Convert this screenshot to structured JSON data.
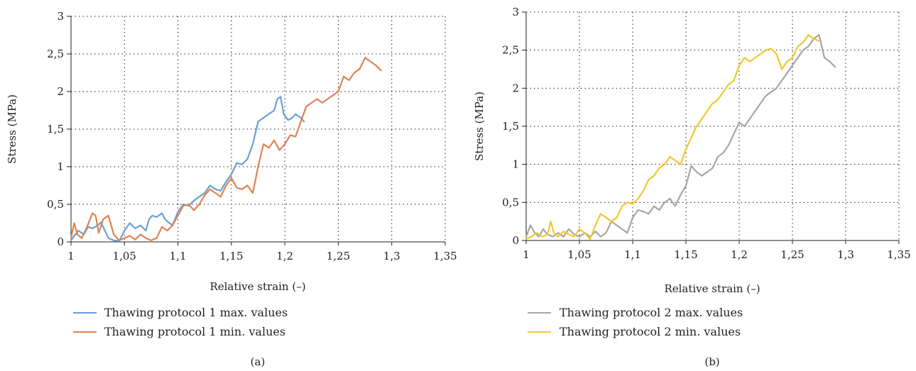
{
  "chart_data": [
    {
      "type": "line",
      "panel_label": "(a)",
      "xlabel": "Relative strain (–)",
      "ylabel": "Stress (MPa)",
      "xlim": [
        1,
        1.35
      ],
      "ylim": [
        0,
        3
      ],
      "xticks": [
        1,
        1.05,
        1.1,
        1.15,
        1.2,
        1.25,
        1.3,
        1.35
      ],
      "xtick_labels": [
        "1",
        "1,05",
        "1,1",
        "1,15",
        "1,2",
        "1,25",
        "1,3",
        "1,35"
      ],
      "yticks": [
        0,
        0.5,
        1,
        1.5,
        2,
        2.5,
        3
      ],
      "ytick_labels": [
        "0",
        "0,5",
        "1",
        "1,5",
        "2",
        "2,5",
        "3"
      ],
      "grid": true,
      "legend_position": "bottom-left",
      "series": [
        {
          "name": "Thawing protocol 1 max. values",
          "color": "#6a9fd3",
          "x": [
            1.0,
            1.003,
            1.007,
            1.012,
            1.016,
            1.02,
            1.025,
            1.028,
            1.032,
            1.035,
            1.04,
            1.045,
            1.05,
            1.055,
            1.06,
            1.065,
            1.07,
            1.073,
            1.076,
            1.08,
            1.085,
            1.088,
            1.092,
            1.095,
            1.1,
            1.105,
            1.11,
            1.115,
            1.12,
            1.125,
            1.13,
            1.135,
            1.14,
            1.145,
            1.15,
            1.155,
            1.16,
            1.165,
            1.17,
            1.175,
            1.18,
            1.185,
            1.19,
            1.193,
            1.196,
            1.199,
            1.203,
            1.207,
            1.21,
            1.215,
            1.218
          ],
          "y": [
            0.02,
            0.08,
            0.15,
            0.1,
            0.2,
            0.18,
            0.22,
            0.26,
            0.14,
            0.05,
            0.02,
            0.01,
            0.15,
            0.25,
            0.18,
            0.22,
            0.15,
            0.3,
            0.35,
            0.33,
            0.38,
            0.3,
            0.25,
            0.22,
            0.4,
            0.5,
            0.48,
            0.55,
            0.6,
            0.65,
            0.75,
            0.7,
            0.68,
            0.8,
            0.9,
            1.05,
            1.03,
            1.1,
            1.3,
            1.6,
            1.65,
            1.7,
            1.75,
            1.9,
            1.93,
            1.7,
            1.62,
            1.65,
            1.7,
            1.65,
            1.6
          ]
        },
        {
          "name": "Thawing protocol 1 min. values",
          "color": "#dd8452",
          "x": [
            1.0,
            1.003,
            1.006,
            1.01,
            1.015,
            1.02,
            1.023,
            1.026,
            1.03,
            1.035,
            1.04,
            1.045,
            1.05,
            1.055,
            1.06,
            1.065,
            1.07,
            1.075,
            1.08,
            1.085,
            1.09,
            1.095,
            1.1,
            1.105,
            1.11,
            1.115,
            1.12,
            1.125,
            1.13,
            1.135,
            1.14,
            1.145,
            1.15,
            1.155,
            1.16,
            1.165,
            1.17,
            1.175,
            1.18,
            1.185,
            1.19,
            1.195,
            1.2,
            1.205,
            1.21,
            1.215,
            1.22,
            1.225,
            1.23,
            1.235,
            1.24,
            1.245,
            1.25,
            1.255,
            1.26,
            1.265,
            1.27,
            1.275,
            1.28,
            1.285,
            1.29
          ],
          "y": [
            0.05,
            0.25,
            0.1,
            0.05,
            0.2,
            0.38,
            0.35,
            0.12,
            0.3,
            0.35,
            0.1,
            0.02,
            0.05,
            0.08,
            0.03,
            0.1,
            0.05,
            0.02,
            0.05,
            0.2,
            0.15,
            0.22,
            0.35,
            0.48,
            0.5,
            0.42,
            0.5,
            0.62,
            0.7,
            0.65,
            0.6,
            0.75,
            0.85,
            0.72,
            0.7,
            0.75,
            0.65,
            1.0,
            1.3,
            1.25,
            1.35,
            1.22,
            1.3,
            1.42,
            1.4,
            1.6,
            1.8,
            1.85,
            1.9,
            1.85,
            1.9,
            1.95,
            2.0,
            2.2,
            2.15,
            2.25,
            2.3,
            2.45,
            2.4,
            2.35,
            2.28
          ]
        }
      ]
    },
    {
      "type": "line",
      "panel_label": "(b)",
      "xlabel": "Relative strain (–)",
      "ylabel": "Stress (MPa)",
      "xlim": [
        1,
        1.35
      ],
      "ylim": [
        0,
        3
      ],
      "xticks": [
        1,
        1.05,
        1.1,
        1.15,
        1.2,
        1.25,
        1.3,
        1.35
      ],
      "xtick_labels": [
        "1",
        "1,05",
        "1,1",
        "1,15",
        "1,2",
        "1,25",
        "1,3",
        "1,35"
      ],
      "yticks": [
        0,
        0.5,
        1,
        1.5,
        2,
        2.5,
        3
      ],
      "ytick_labels": [
        "0",
        "0,5",
        "1",
        "1,5",
        "2",
        "2,5",
        "3"
      ],
      "grid": true,
      "legend_position": "bottom-left",
      "series": [
        {
          "name": "Thawing protocol 2 max. values",
          "color": "#a6a6a6",
          "x": [
            1.0,
            1.004,
            1.008,
            1.012,
            1.016,
            1.02,
            1.025,
            1.03,
            1.035,
            1.04,
            1.045,
            1.05,
            1.055,
            1.06,
            1.065,
            1.07,
            1.075,
            1.08,
            1.085,
            1.09,
            1.095,
            1.1,
            1.105,
            1.11,
            1.115,
            1.12,
            1.125,
            1.13,
            1.135,
            1.14,
            1.145,
            1.15,
            1.155,
            1.16,
            1.165,
            1.17,
            1.175,
            1.18,
            1.185,
            1.19,
            1.195,
            1.2,
            1.205,
            1.21,
            1.215,
            1.22,
            1.225,
            1.23,
            1.235,
            1.24,
            1.245,
            1.25,
            1.255,
            1.26,
            1.265,
            1.27,
            1.275,
            1.28,
            1.285,
            1.29
          ],
          "y": [
            0.05,
            0.2,
            0.1,
            0.05,
            0.15,
            0.08,
            0.05,
            0.1,
            0.05,
            0.15,
            0.08,
            0.05,
            0.1,
            0.05,
            0.12,
            0.05,
            0.1,
            0.25,
            0.2,
            0.15,
            0.1,
            0.3,
            0.4,
            0.38,
            0.35,
            0.45,
            0.4,
            0.5,
            0.55,
            0.45,
            0.6,
            0.72,
            0.98,
            0.9,
            0.85,
            0.9,
            0.95,
            1.1,
            1.15,
            1.25,
            1.4,
            1.55,
            1.5,
            1.6,
            1.7,
            1.8,
            1.9,
            1.95,
            2.0,
            2.1,
            2.2,
            2.3,
            2.4,
            2.5,
            2.55,
            2.65,
            2.7,
            2.4,
            2.35,
            2.28
          ]
        },
        {
          "name": "Thawing protocol 2 min. values",
          "color": "#f0c832",
          "x": [
            1.0,
            1.005,
            1.01,
            1.015,
            1.02,
            1.023,
            1.026,
            1.03,
            1.035,
            1.04,
            1.045,
            1.05,
            1.055,
            1.06,
            1.065,
            1.07,
            1.075,
            1.08,
            1.085,
            1.09,
            1.095,
            1.1,
            1.105,
            1.11,
            1.115,
            1.12,
            1.125,
            1.13,
            1.135,
            1.14,
            1.145,
            1.15,
            1.155,
            1.16,
            1.165,
            1.17,
            1.175,
            1.18,
            1.185,
            1.19,
            1.195,
            1.2,
            1.205,
            1.21,
            1.215,
            1.22,
            1.225,
            1.23,
            1.235,
            1.24,
            1.245,
            1.25,
            1.255,
            1.26,
            1.265,
            1.27,
            1.275
          ],
          "y": [
            0.02,
            0.05,
            0.1,
            0.05,
            0.08,
            0.25,
            0.1,
            0.05,
            0.12,
            0.08,
            0.05,
            0.15,
            0.1,
            0.02,
            0.2,
            0.35,
            0.3,
            0.25,
            0.3,
            0.45,
            0.5,
            0.48,
            0.55,
            0.65,
            0.8,
            0.85,
            0.95,
            1.0,
            1.1,
            1.05,
            1.0,
            1.2,
            1.35,
            1.5,
            1.6,
            1.7,
            1.8,
            1.85,
            1.95,
            2.05,
            2.1,
            2.3,
            2.4,
            2.35,
            2.4,
            2.45,
            2.5,
            2.52,
            2.45,
            2.25,
            2.35,
            2.4,
            2.55,
            2.6,
            2.7,
            2.65,
            2.62
          ]
        }
      ]
    }
  ]
}
